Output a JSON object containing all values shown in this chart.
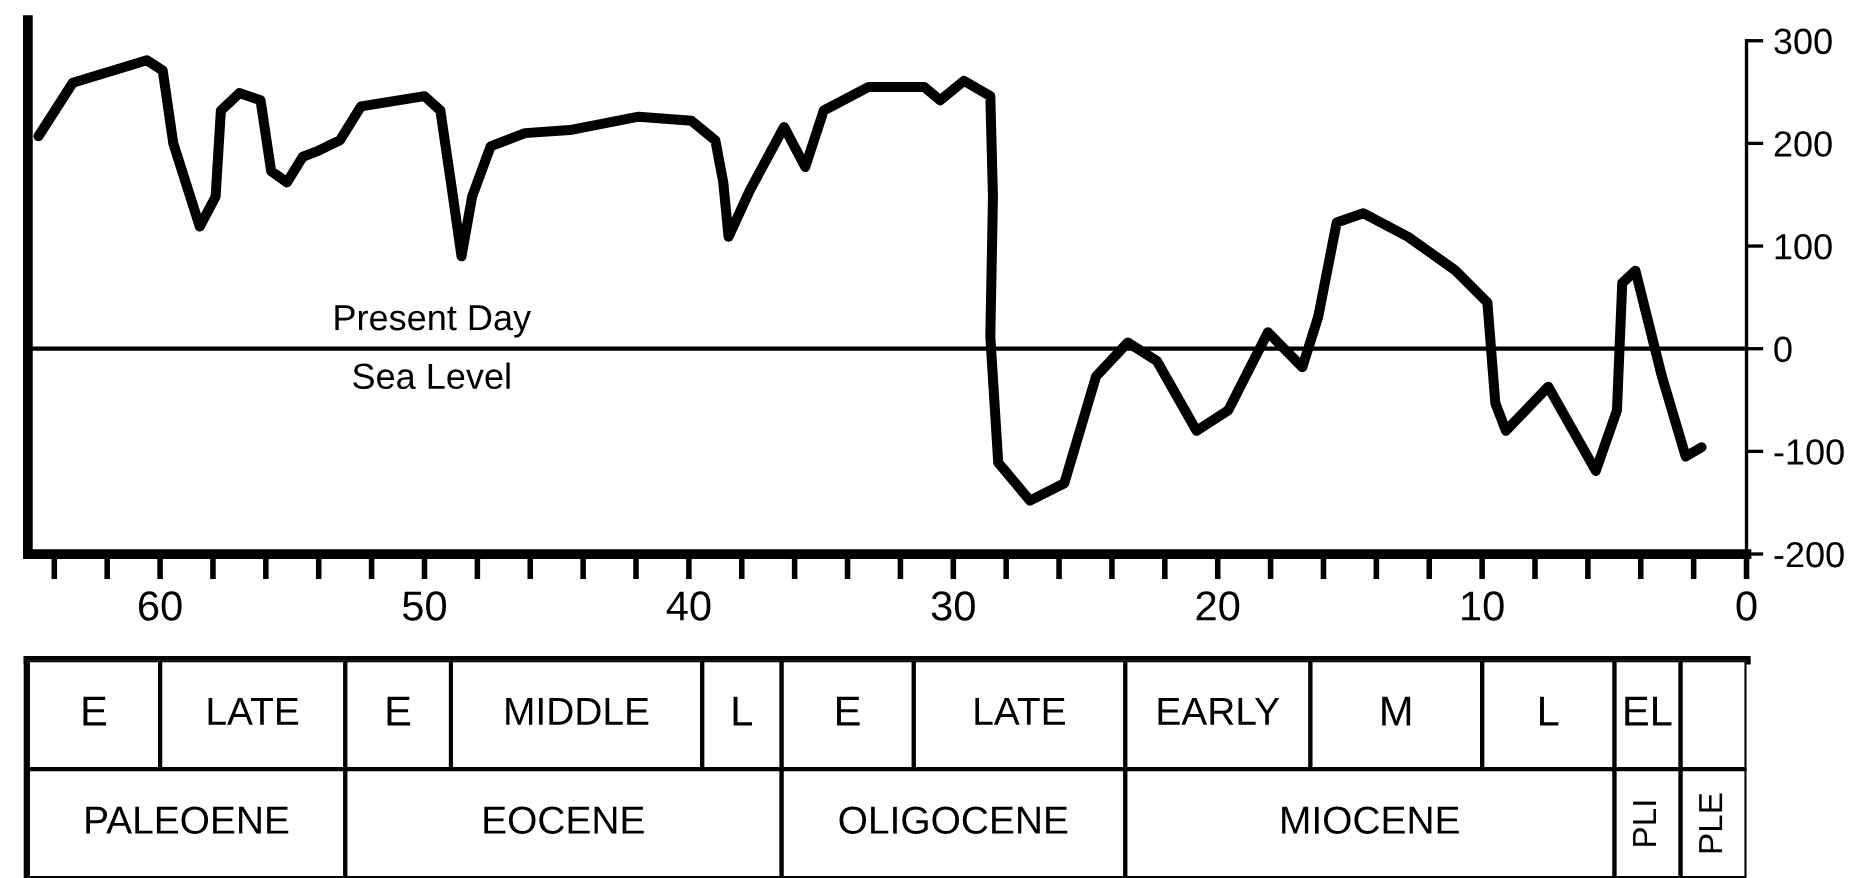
{
  "chart_data": [
    {
      "type": "line",
      "xlim": [
        65,
        0
      ],
      "ylim": [
        -200,
        320
      ],
      "xticks": [
        {
          "value": 64,
          "label": null
        },
        {
          "value": 62,
          "label": null
        },
        60,
        {
          "value": 58,
          "label": null
        },
        {
          "value": 56,
          "label": null
        },
        {
          "value": 54,
          "label": null
        },
        {
          "value": 52,
          "label": null
        },
        50,
        {
          "value": 48,
          "label": null
        },
        {
          "value": 46,
          "label": null
        },
        {
          "value": 44,
          "label": null
        },
        {
          "value": 42,
          "label": null
        },
        40,
        {
          "value": 38,
          "label": null
        },
        {
          "value": 36,
          "label": null
        },
        {
          "value": 34,
          "label": null
        },
        {
          "value": 32,
          "label": null
        },
        30,
        {
          "value": 28,
          "label": null
        },
        {
          "value": 26,
          "label": null
        },
        {
          "value": 24,
          "label": null
        },
        {
          "value": 22,
          "label": null
        },
        20,
        {
          "value": 18,
          "label": null
        },
        {
          "value": 16,
          "label": null
        },
        {
          "value": 14,
          "label": null
        },
        {
          "value": 12,
          "label": null
        },
        10,
        {
          "value": 8,
          "label": null
        },
        {
          "value": 6,
          "label": null
        },
        {
          "value": 4,
          "label": null
        },
        {
          "value": 2,
          "label": null
        },
        0
      ],
      "yticks": [
        -200,
        -100,
        0,
        100,
        200,
        300
      ],
      "grid": false,
      "marker": "none",
      "line_style": "solid",
      "series": [
        {
          "color": "#000000",
          "x": [
            64.6,
            63.3,
            60.5,
            59.9,
            59.5,
            58.5,
            57.9,
            57.7,
            57.0,
            56.2,
            55.8,
            55.2,
            54.6,
            54.0,
            53.2,
            52.4,
            50.0,
            49.4,
            49.0,
            48.6,
            48.2,
            47.5,
            46.2,
            44.5,
            41.9,
            39.9,
            39.0,
            38.7,
            38.5,
            37.7,
            36.4,
            35.6,
            34.9,
            33.2,
            31.1,
            30.5,
            29.6,
            28.6,
            28.5,
            28.6,
            28.3,
            27.1,
            25.8,
            24.6,
            23.4,
            22.3,
            20.8,
            19.6,
            18.1,
            16.8,
            16.2,
            15.5,
            14.5,
            12.8,
            11.0,
            9.8,
            9.5,
            9.1,
            7.5,
            5.7,
            4.9,
            4.7,
            4.2,
            3.2,
            2.3,
            1.7
          ],
          "values": [
            207,
            259,
            281,
            271,
            200,
            119,
            148,
            232,
            249,
            242,
            173,
            162,
            187,
            193,
            203,
            236,
            246,
            232,
            162,
            90,
            148,
            197,
            210,
            213,
            226,
            222,
            203,
            162,
            109,
            154,
            216,
            177,
            232,
            255,
            255,
            242,
            261,
            246,
            148,
            12,
            -111,
            -148,
            -131,
            -27,
            6,
            -12,
            -80,
            -60,
            16,
            -18,
            31,
            123,
            132,
            109,
            76,
            45,
            -53,
            -80,
            -37,
            -119,
            -60,
            64,
            76,
            -27,
            -105,
            -96
          ]
        }
      ],
      "ref_lines": [
        {
          "axis": "y",
          "value": 0,
          "label": "Present Day\nSea Level",
          "color": "#000000"
        }
      ]
    },
    {
      "type": "bar",
      "orientation": "horizontal",
      "stacked": true,
      "xlim": [
        65,
        0
      ],
      "categories": [
        null,
        null
      ],
      "series": [
        {
          "color": "#ffffff",
          "values": [
            2.5,
            null
          ]
        },
        {
          "name": "EL",
          "color": "#ffffff",
          "values": [
            2.5,
            null
          ]
        },
        {
          "name": "L",
          "color": "#ffffff",
          "values": [
            5,
            null
          ]
        },
        {
          "name": "M",
          "color": "#ffffff",
          "values": [
            6.5,
            null
          ]
        },
        {
          "name": "EARLY",
          "color": "#ffffff",
          "values": [
            7,
            null
          ]
        },
        {
          "name": "LATE",
          "color": "#ffffff",
          "values": [
            8,
            null
          ]
        },
        {
          "name": "E",
          "color": "#ffffff",
          "values": [
            5,
            null
          ]
        },
        {
          "name": "L",
          "color": "#ffffff",
          "values": [
            3,
            null
          ]
        },
        {
          "name": "MIDDLE",
          "color": "#ffffff",
          "values": [
            9.5,
            null
          ]
        },
        {
          "name": "E",
          "color": "#ffffff",
          "values": [
            4,
            null
          ]
        },
        {
          "name": "LATE",
          "color": "#ffffff",
          "values": [
            7,
            null
          ]
        },
        {
          "name": "E",
          "color": "#ffffff",
          "values": [
            5,
            null
          ]
        },
        {
          "name": "PLE",
          "color": "#ffffff",
          "values": [
            null,
            2.5
          ]
        },
        {
          "name": "PLI",
          "color": "#ffffff",
          "values": [
            null,
            2.5
          ]
        },
        {
          "name": "MIOCENE",
          "color": "#ffffff",
          "values": [
            null,
            18.5
          ]
        },
        {
          "name": "OLIGOCENE",
          "color": "#ffffff",
          "values": [
            null,
            13
          ]
        },
        {
          "name": "EOCENE",
          "color": "#ffffff",
          "values": [
            null,
            16.5
          ]
        },
        {
          "name": "PALEOENE",
          "color": "#ffffff",
          "values": [
            null,
            12
          ]
        }
      ]
    }
  ]
}
